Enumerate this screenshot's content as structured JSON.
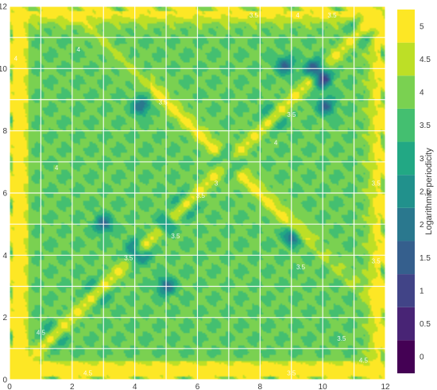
{
  "chart_data": {
    "type": "heatmap",
    "subtype": "filled-contour",
    "x_range": [
      0,
      12
    ],
    "y_range": [
      0,
      12
    ],
    "x_ticks": [
      0,
      2,
      4,
      6,
      8,
      10,
      12
    ],
    "y_ticks": [
      0,
      2,
      4,
      6,
      8,
      10,
      12
    ],
    "grid": true,
    "grid_step": 1,
    "colorbar": {
      "title": "Logarithmic periodicity",
      "range": [
        -0.25,
        5.25
      ],
      "ticks": [
        0,
        0.5,
        1,
        1.5,
        2,
        2.5,
        3,
        3.5,
        4,
        4.5,
        5
      ],
      "tick_labels": [
        "0",
        "0.5",
        "1",
        "1.5",
        "2",
        "2.5",
        "3",
        "3.5",
        "4",
        "4.5",
        "5"
      ],
      "levels": [
        -0.25,
        0.25,
        0.75,
        1.25,
        1.75,
        2.25,
        2.75,
        3.25,
        3.75,
        4.25,
        4.75,
        5.25
      ],
      "colors": [
        "#440154",
        "#482475",
        "#414487",
        "#355f8d",
        "#2a788e",
        "#21918c",
        "#22a884",
        "#44bf70",
        "#7ad151",
        "#bddf26",
        "#fde725"
      ],
      "placement": "right"
    },
    "features": {
      "diagonal_ridge_value": 4.5,
      "background_value": 3.8,
      "minima_value": 2.0,
      "border_value": 5.0
    },
    "contour_labels": [
      {
        "x": 7.8,
        "y": 11.7,
        "text": "3.5"
      },
      {
        "x": 9.2,
        "y": 11.7,
        "text": "4"
      },
      {
        "x": 10.3,
        "y": 11.7,
        "text": "3.5"
      },
      {
        "x": 6.1,
        "y": 5.9,
        "text": "3.5"
      },
      {
        "x": 6.6,
        "y": 6.3,
        "text": "3"
      },
      {
        "x": 3.8,
        "y": 3.9,
        "text": "3.5"
      },
      {
        "x": 4.9,
        "y": 8.9,
        "text": "3.5"
      },
      {
        "x": 9.3,
        "y": 3.6,
        "text": "3.5"
      },
      {
        "x": 10.6,
        "y": 1.3,
        "text": "3.5"
      },
      {
        "x": 11.3,
        "y": 0.6,
        "text": "4.5"
      },
      {
        "x": 2.5,
        "y": 0.2,
        "text": "4.5"
      },
      {
        "x": 9.0,
        "y": 0.2,
        "text": "3.5"
      },
      {
        "x": 1.0,
        "y": 1.5,
        "text": "4.5"
      },
      {
        "x": 1.5,
        "y": 6.8,
        "text": "4"
      },
      {
        "x": 2.2,
        "y": 10.6,
        "text": "4"
      },
      {
        "x": 11.7,
        "y": 6.3,
        "text": "3.5"
      },
      {
        "x": 11.7,
        "y": 3.8,
        "text": "3.5"
      },
      {
        "x": 8.5,
        "y": 7.6,
        "text": "4"
      },
      {
        "x": 9.0,
        "y": 8.5,
        "text": "3.5"
      },
      {
        "x": 5.3,
        "y": 4.6,
        "text": "3.5"
      },
      {
        "x": 0.2,
        "y": 10.3,
        "text": "4"
      }
    ]
  }
}
